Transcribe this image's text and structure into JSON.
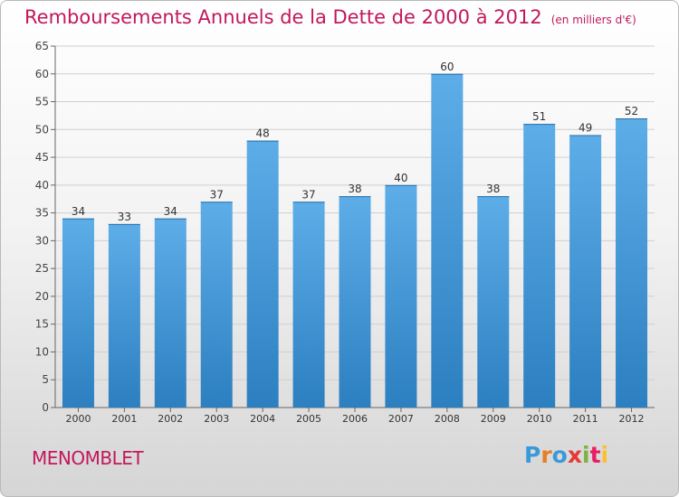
{
  "header": {
    "title": "Remboursements Annuels de la Dette de 2000 à 2012",
    "unit": "(en milliers d'€)"
  },
  "footer": {
    "commune": "MENOMBLET",
    "logo_letters": [
      "P",
      "r",
      "o",
      "x",
      "i",
      "t",
      "i"
    ],
    "logo_colors": [
      "#3a9ad9",
      "#e67e22",
      "#3a9ad9",
      "#e53935",
      "#7cb342",
      "#e91e63",
      "#fbc02d"
    ]
  },
  "colors": {
    "title": "#c2185b",
    "bar_light": "#5dade8",
    "bar_dark": "#2c7fc0"
  },
  "chart_data": {
    "type": "bar",
    "categories": [
      "2000",
      "2001",
      "2002",
      "2003",
      "2004",
      "2005",
      "2006",
      "2007",
      "2008",
      "2009",
      "2010",
      "2011",
      "2012"
    ],
    "values": [
      34,
      33,
      34,
      37,
      48,
      37,
      38,
      40,
      60,
      38,
      51,
      49,
      52
    ],
    "title": "Remboursements Annuels de la Dette de 2000 à 2012",
    "xlabel": "",
    "ylabel": "",
    "ylim": [
      0,
      65
    ],
    "yticks": [
      0,
      5,
      10,
      15,
      20,
      25,
      30,
      35,
      40,
      45,
      50,
      55,
      60,
      65
    ],
    "grid": true,
    "data_labels": true
  }
}
